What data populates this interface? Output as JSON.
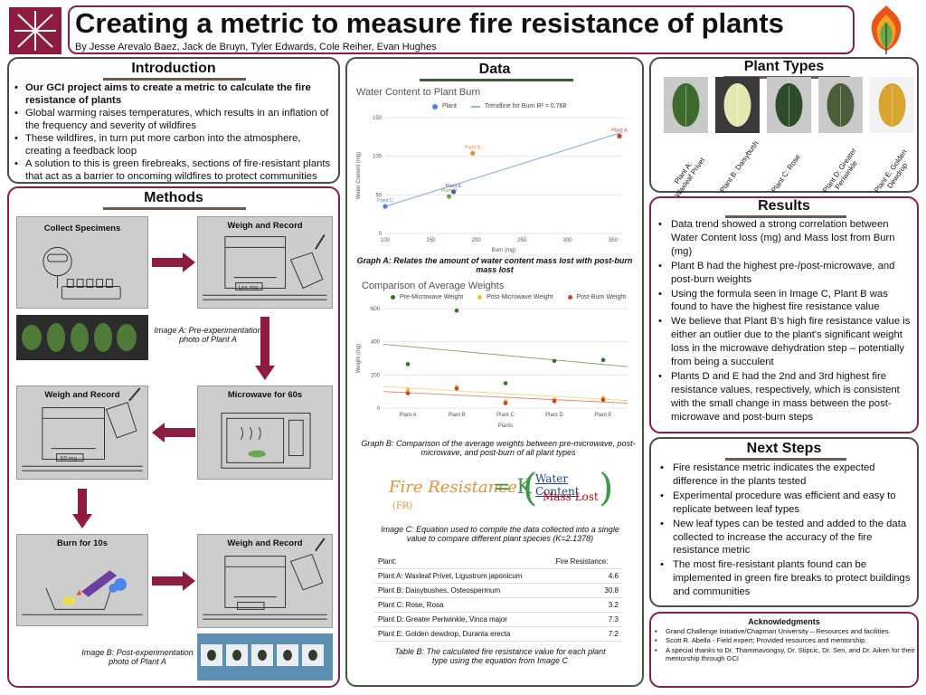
{
  "title": "Creating a metric to measure fire resistance of plants",
  "authors": "By Jesse Arevalo Baez, Jack de Bruyn, Tyler Edwards, Cole Reiher,  Evan Hughes",
  "colors": {
    "accent": "#8e1c3f",
    "green": "#3e5a3a",
    "panel_border": "#4a4a4a"
  },
  "introduction": {
    "heading": "Introduction",
    "bullets": [
      "Our GCI project aims to create a metric to calculate the fire resistance of plants",
      "Global warming raises temperatures, which results in an inflation of the frequency and severity of wildfires",
      "These wildfires, in turn put more carbon into the atmosphere, creating a feedback loop",
      "A solution to this is green firebreaks, sections of fire-resistant plants that act as a barrier to oncoming wildfires to protect communities"
    ]
  },
  "methods": {
    "heading": "Methods",
    "steps": {
      "collect": "Collect Specimens",
      "weigh1": "Weigh and Record",
      "weigh2": "Weigh and Record",
      "microwave": "Microwave for 60s",
      "burn": "Burn for 10s",
      "weigh3": "Weigh and Record"
    },
    "scale_readouts": {
      "weigh1": "Lxx mg",
      "weigh2": "50 mg"
    },
    "image_a_caption": "Image A: Pre-experimentation photo of Plant A",
    "image_b_caption": "Image B: Post-experimentation photo of Plant A"
  },
  "data": {
    "heading": "Data",
    "graph_a_caption": "Graph A: Relates the amount of water content mass lost with post-burn mass lost",
    "graph_b_caption": "Graph B: Comparison of the average weights between pre-microwave, post-microwave, and post-burn of all plant types",
    "image_c_caption": "Image C: Equation used to compile the data collected into a single value to compare different plant species (K=2.1378)",
    "equation": {
      "lhs": "Fire Resistance",
      "lhs_abbr": "(FR)",
      "equals": "= K",
      "numerator": "Water Content",
      "denominator": "Mass Lost"
    },
    "table_caption": "Table B: The calculated fire resistance value for each plant type using the equation from Image C",
    "table": {
      "headers": [
        "Plant:",
        "Fire Resistance:"
      ],
      "rows": [
        {
          "plant": "Plant A: Waxleaf Privet, Ligustrum japonicum",
          "value": "4.6"
        },
        {
          "plant": "Plant B: Daisybushes, Osteospermum",
          "value": "30.8"
        },
        {
          "plant": "Plant C: Rose, Rosa",
          "value": "3.2"
        },
        {
          "plant": "Plant D: Greater Periwinkle, Vinca major",
          "value": "7.3"
        },
        {
          "plant": "Plant E: Golden dewdrop, Duranta erecta",
          "value": "7.2"
        }
      ]
    }
  },
  "chart_data": [
    {
      "type": "scatter",
      "title": "Water Content to Plant Burn",
      "xlabel": "Burn (mg)",
      "ylabel": "Water Content (mg)",
      "xlim": [
        100,
        360
      ],
      "ylim": [
        0,
        150
      ],
      "xticks": [
        100,
        150,
        200,
        250,
        300,
        350
      ],
      "yticks": [
        0,
        50,
        100,
        150
      ],
      "legend": [
        "Plant",
        "Trendline for Burn R² = 0.768"
      ],
      "legend_position": "top",
      "trendline": {
        "x": [
          100,
          360
        ],
        "y": [
          35,
          131
        ]
      },
      "points": [
        {
          "label": "Plant C",
          "x": 100,
          "y": 35,
          "color": "#4a86e8"
        },
        {
          "label": "Plant D",
          "x": 170,
          "y": 48,
          "color": "#6aa84f"
        },
        {
          "label": "Plant E",
          "x": 175,
          "y": 54,
          "color": "#674ea7"
        },
        {
          "label": "Plant B",
          "x": 196,
          "y": 104,
          "color": "#e69138"
        },
        {
          "label": "Plant A",
          "x": 357,
          "y": 126,
          "color": "#cc4125"
        }
      ]
    },
    {
      "type": "scatter",
      "title": "Comparison of Average Weights",
      "xlabel": "Plants",
      "ylabel": "Weight (mg)",
      "categories": [
        "Plant A",
        "Plant B",
        "Plant C",
        "Plant D",
        "Plant E"
      ],
      "ylim": [
        0,
        600
      ],
      "yticks": [
        0,
        200,
        400,
        600
      ],
      "legend_position": "top",
      "series": [
        {
          "name": "Pre-Microwave Weight",
          "color": "#38761d",
          "values": [
            265,
            588,
            150,
            285,
            290
          ],
          "trend": [
            385,
            250
          ]
        },
        {
          "name": "Post-Microwave Weight",
          "color": "#f1c232",
          "values": [
            112,
            128,
            40,
            52,
            62
          ],
          "trend": [
            130,
            45
          ]
        },
        {
          "name": "Post-Burn Weight",
          "color": "#cc4125",
          "values": [
            90,
            118,
            30,
            42,
            50
          ],
          "trend": [
            100,
            30
          ]
        }
      ]
    }
  ],
  "plant_types": {
    "heading": "Plant Types",
    "items": [
      {
        "label_line1": "Plant A:",
        "label_line2": "Waxleaf Privet",
        "color": "#3d6b2e"
      },
      {
        "label_line1": "Plant B: Daisybush",
        "label_line2": "",
        "color": "#e4e8b0"
      },
      {
        "label_line1": "Plant C: Rose",
        "label_line2": "",
        "color": "#2d4a2a"
      },
      {
        "label_line1": "Plant D: Greater",
        "label_line2": "Periwinkle",
        "color": "#4a5e3a"
      },
      {
        "label_line1": "Plant E: Golden",
        "label_line2": "Dewdrop",
        "color": "#d9a531"
      }
    ]
  },
  "results": {
    "heading": "Results",
    "bullets": [
      "Data trend showed a strong correlation between Water Content loss (mg) and Mass lost from Burn (mg)",
      "Plant B had the highest pre-/post-microwave, and post-burn weights",
      "Using the formula seen in Image C, Plant B was found to have the highest fire resistance value",
      "We believe that Plant B's high fire resistance value is either an outlier due to the plant's significant weight loss in the microwave dehydration step – potentially from being a succulent",
      "Plants D and E had the 2nd and 3rd highest fire resistance values, respectively, which is consistent with the small change in mass between the post-microwave and post-burn steps"
    ]
  },
  "next_steps": {
    "heading": "Next Steps",
    "bullets": [
      "Fire resistance metric indicates the expected difference in the plants tested",
      "Experimental procedure was efficient and easy to replicate between leaf types",
      "New leaf types can be tested and added to the data collected to increase the accuracy of the fire resistance metric",
      "The most fire-resistant plants found can be implemented in green fire breaks to protect buildings and communities"
    ]
  },
  "acknowledgments": {
    "heading": "Acknowledgments",
    "bullets": [
      "Grand Challenge Initiative/Chapman University – Resources and facilities.",
      "Scott R. Abella - Field expert; Provided resources and mentorship.",
      "A special thanks to Dr. Thammavongsy, Dr. Stipcic, Dr. Sen, and Dr. Aiken for their mentorship through GCI"
    ]
  }
}
